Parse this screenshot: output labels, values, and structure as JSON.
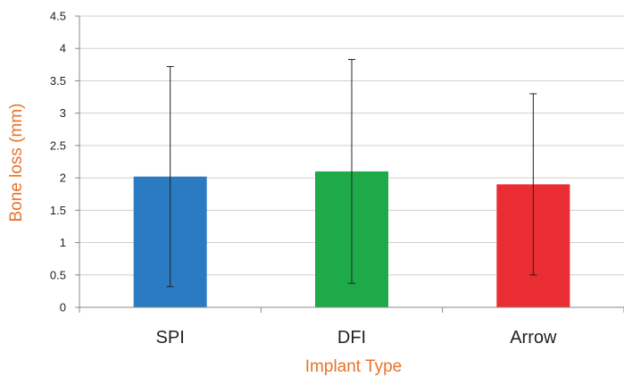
{
  "chart_data": {
    "type": "bar",
    "title": "",
    "xlabel": "Implant Type",
    "ylabel": "Bone loss (mm)",
    "categories": [
      "SPI",
      "DFI",
      "Arrow"
    ],
    "values": [
      2.02,
      2.1,
      1.9
    ],
    "error_low": [
      0.32,
      0.37,
      0.5
    ],
    "error_high": [
      3.72,
      3.83,
      3.3
    ],
    "colors": [
      "#2a7bc1",
      "#1faa4a",
      "#ea2c33"
    ],
    "ylim": [
      0,
      4.5
    ],
    "yticks": [
      "0",
      "0.5",
      "1",
      "1.5",
      "2",
      "2.5",
      "3",
      "3.5",
      "4",
      "4.5"
    ],
    "grid": true,
    "axis_title_color": "#e8732a",
    "grid_color": "#cfcfcf",
    "legend": "none"
  }
}
